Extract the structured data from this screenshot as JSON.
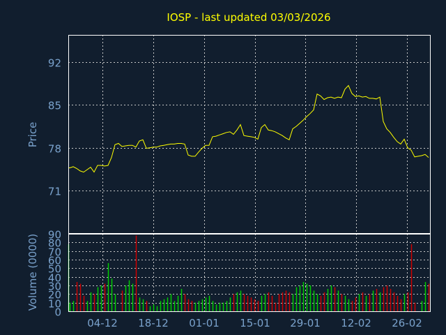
{
  "colors": {
    "background": "#111e2e",
    "frame": "#ffffff",
    "grid": "#c8c8c8",
    "title": "#ffff00",
    "price_line": "#ffff00",
    "tick_text": "#7aa2cc",
    "volume_up": "#00cc00",
    "volume_down": "#cc0000"
  },
  "chart_data": {
    "type": "line",
    "title": "IOSP - last updated 03/03/2026",
    "price": {
      "ylabel": "Price",
      "ylim": [
        64,
        96.5
      ],
      "yticks": [
        71,
        78,
        85,
        92
      ],
      "ytick_labels": [
        "71",
        "78",
        "85",
        "92"
      ],
      "grid": true,
      "values": [
        74.7,
        74.7,
        74.8,
        74.9,
        74.6,
        74.2,
        74.0,
        74.4,
        74.8,
        74.0,
        75.1,
        75.1,
        75.0,
        75.1,
        76.4,
        78.5,
        78.7,
        78.2,
        78.3,
        78.4,
        78.4,
        78.1,
        79.1,
        79.3,
        77.9,
        78.0,
        78.1,
        78.1,
        78.3,
        78.4,
        78.5,
        78.6,
        78.6,
        78.7,
        78.7,
        78.6,
        76.8,
        76.6,
        76.6,
        77.3,
        77.9,
        78.4,
        78.4,
        79.8,
        79.9,
        80.1,
        80.3,
        80.5,
        80.6,
        80.2,
        80.9,
        81.8,
        80.0,
        79.9,
        79.8,
        79.7,
        79.4,
        81.3,
        81.8,
        80.9,
        80.8,
        80.6,
        80.3,
        80.0,
        79.6,
        79.3,
        81.1,
        81.5,
        82.0,
        82.5,
        83.1,
        83.6,
        84.2,
        86.8,
        86.5,
        85.9,
        86.2,
        86.3,
        86.1,
        86.3,
        86.2,
        87.6,
        88.2,
        86.9,
        86.4,
        86.5,
        86.3,
        86.4,
        86.1,
        86.1,
        86.0,
        86.3,
        82.3,
        81.1,
        80.5,
        79.7,
        79.0,
        78.6,
        79.4,
        78.0,
        77.6,
        76.5,
        76.6,
        76.7,
        76.9,
        76.4
      ],
      "x_positions": [
        98,
        100,
        103,
        105,
        110,
        115,
        120,
        125,
        130,
        135,
        140,
        145,
        150,
        155,
        160,
        165,
        170,
        175,
        180,
        185,
        190,
        195,
        200,
        205,
        210,
        215,
        220,
        225,
        230,
        235,
        240,
        245,
        250,
        255,
        260,
        265,
        270,
        275,
        280,
        285,
        290,
        295,
        300,
        305,
        310,
        315,
        320,
        325,
        330,
        335,
        340,
        345,
        350,
        355,
        360,
        365,
        370,
        375,
        380,
        385,
        390,
        395,
        400,
        405,
        410,
        415,
        420,
        425,
        430,
        435,
        440,
        445,
        450,
        455,
        460,
        465,
        470,
        475,
        480,
        485,
        490,
        495,
        500,
        505,
        510,
        515,
        520,
        525,
        530,
        535,
        540,
        545,
        550,
        555,
        560,
        565,
        570,
        575,
        580,
        585,
        590,
        595,
        600,
        605,
        610,
        615
      ]
    },
    "volume": {
      "ylabel": "Volume (0000)",
      "ylim": [
        0,
        90
      ],
      "yticks": [
        0,
        10,
        20,
        30,
        40,
        50,
        60,
        70,
        80,
        90
      ],
      "ytick_labels": [
        "0",
        "10",
        "20",
        "30",
        "40",
        "50",
        "60",
        "70",
        "80",
        "90"
      ],
      "grid": true
    },
    "x_tick_labels": [
      "04-12",
      "18-12",
      "01-01",
      "15-01",
      "29-01",
      "12-02",
      "26-02"
    ]
  }
}
